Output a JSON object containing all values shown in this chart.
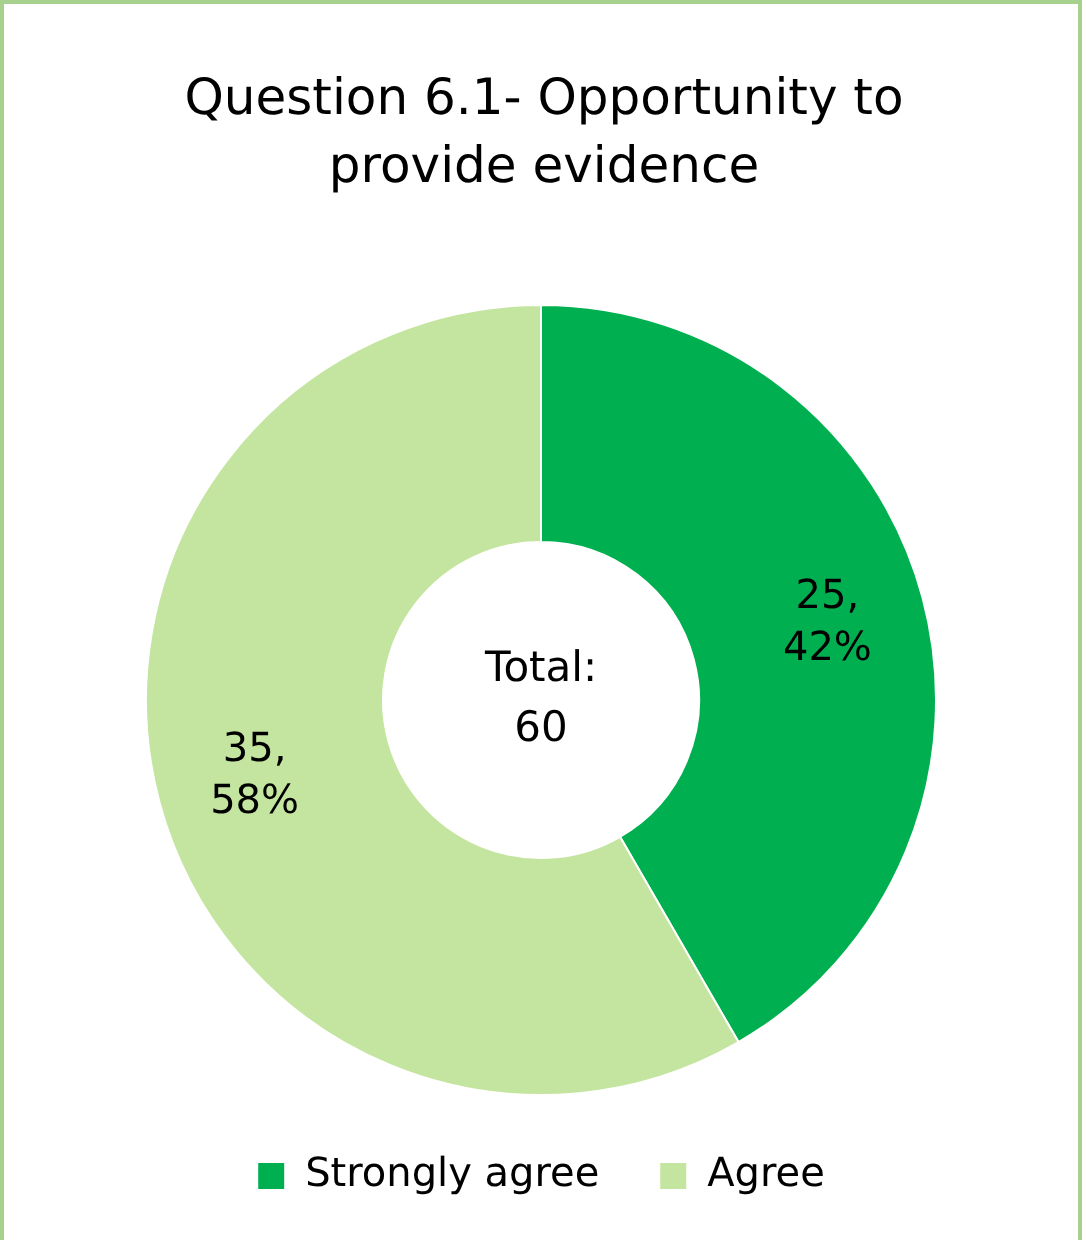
{
  "chart_data": {
    "type": "donut",
    "title": "Question 6.1- Opportunity to provide evidence",
    "categories": [
      "Strongly agree",
      "Agree"
    ],
    "values": [
      25,
      35
    ],
    "colors": [
      "#00b050",
      "#c4e59f"
    ],
    "value_labels": [
      "25, 42%",
      "35, 58%"
    ],
    "annotations": [
      "Total: 60"
    ],
    "legend": "bottom"
  }
}
